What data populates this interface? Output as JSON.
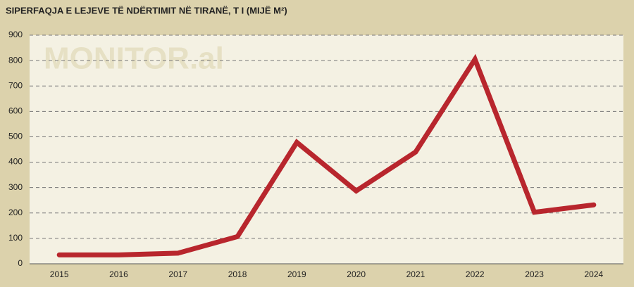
{
  "chart_data": {
    "type": "line",
    "title": "SIPERFAQJA E LEJEVE TË NDËRTIMIT NË TIRANË, T I (MIJË M²)",
    "watermark": "MONITOR.al",
    "categories": [
      "2015",
      "2016",
      "2017",
      "2018",
      "2019",
      "2020",
      "2021",
      "2022",
      "2023",
      "2024"
    ],
    "values": [
      35,
      35,
      42,
      107,
      478,
      287,
      440,
      805,
      203,
      232
    ],
    "color": "#b8262d",
    "ylim": [
      0,
      900
    ],
    "yticks": [
      0,
      100,
      200,
      300,
      400,
      500,
      600,
      700,
      800,
      900
    ],
    "grid": true
  }
}
